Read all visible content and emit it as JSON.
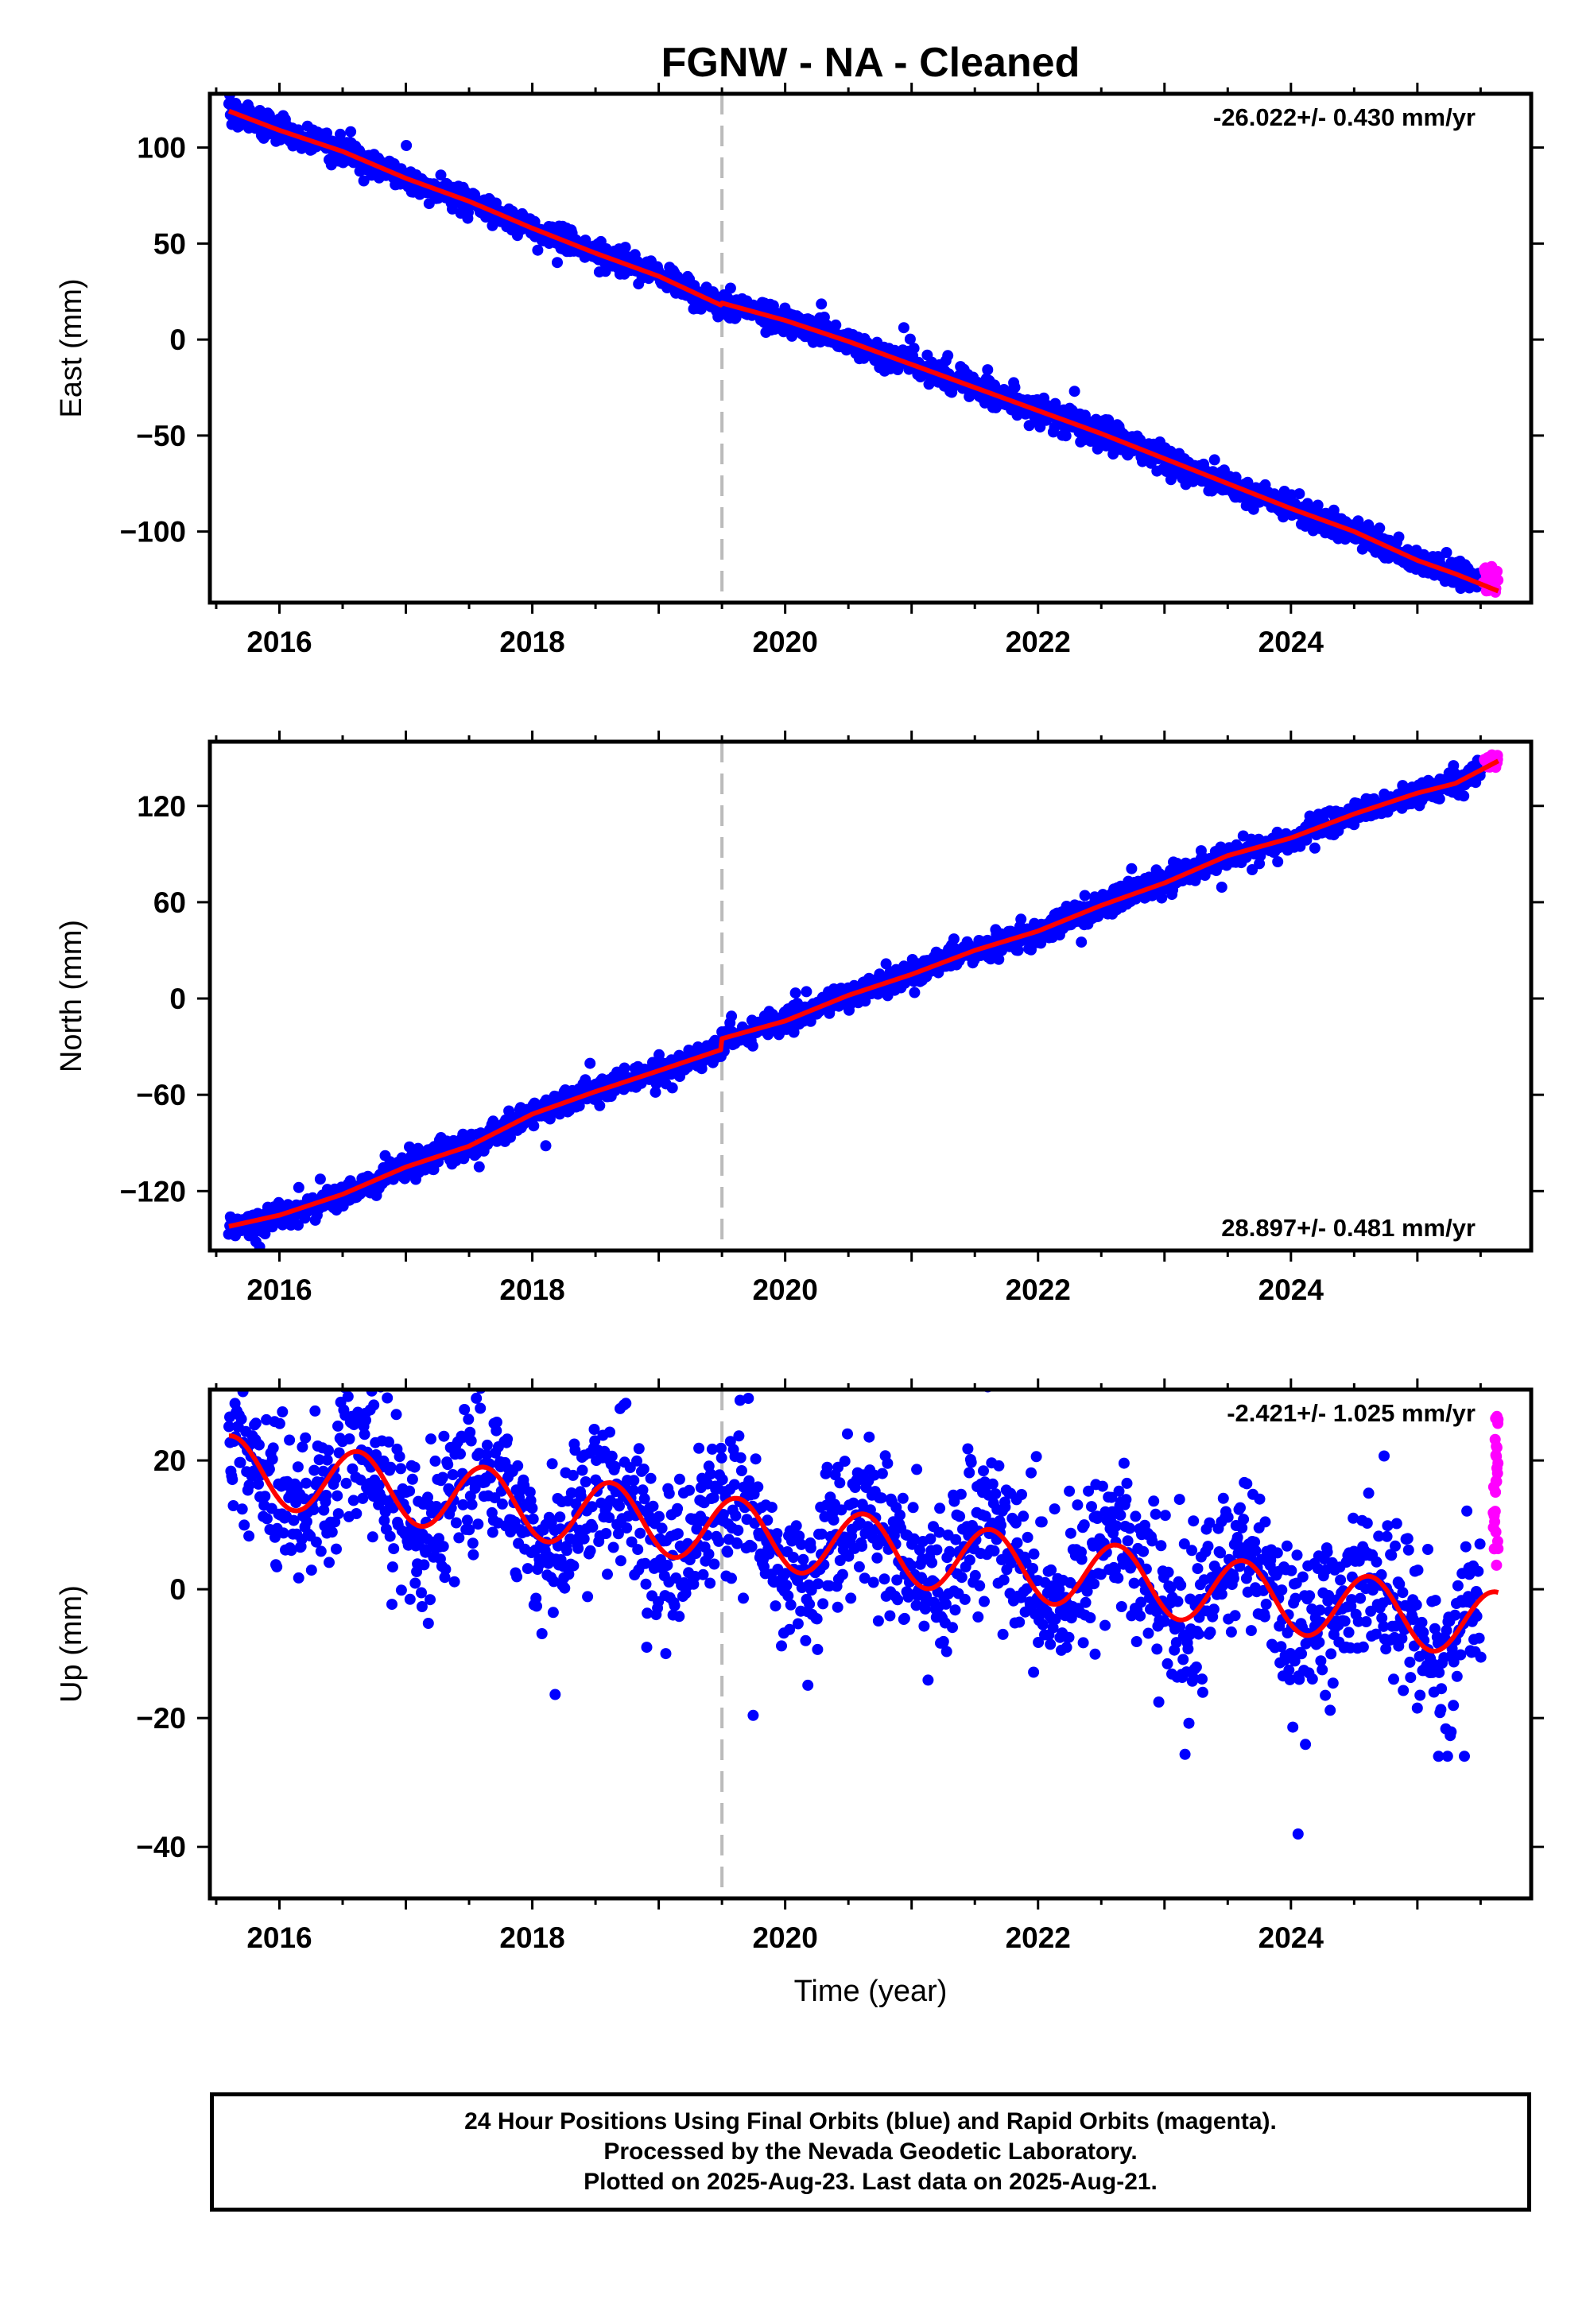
{
  "title": "FGNW  - NA - Cleaned",
  "xlabel": "Time (year)",
  "colors": {
    "final_orbits": "#0000ff",
    "rapid_orbits": "#ff00ff",
    "model": "#ff0000",
    "event_line": "#bbbbbb"
  },
  "caption": {
    "line1": "24 Hour Positions Using Final Orbits (blue) and Rapid Orbits (magenta).",
    "line2": "Processed by the Nevada Geodetic Laboratory.",
    "line3": "Plotted on 2025-Aug-23. Last data on 2025-Aug-21."
  },
  "chart_data": [
    {
      "type": "scatter",
      "ylabel": "East (mm)",
      "rate_label": "-26.022+/- 0.430 mm/yr",
      "rate_position": "top-right",
      "xlim": [
        2015.45,
        2025.9
      ],
      "ylim": [
        -137,
        128
      ],
      "xticks": [
        2016,
        2018,
        2020,
        2022,
        2024
      ],
      "yticks": [
        100,
        50,
        0,
        -50,
        -100
      ],
      "ytick_labels": [
        "100",
        "50",
        "0",
        "−50",
        "−100"
      ],
      "event_line_x": 2019.5,
      "model_points": [
        [
          2015.6,
          119
        ],
        [
          2016.0,
          109
        ],
        [
          2016.5,
          98
        ],
        [
          2017.0,
          84
        ],
        [
          2017.5,
          72
        ],
        [
          2018.0,
          58
        ],
        [
          2018.5,
          45
        ],
        [
          2019.0,
          33
        ],
        [
          2019.49,
          18
        ],
        [
          2019.5,
          19
        ],
        [
          2020.0,
          10
        ],
        [
          2020.5,
          -1
        ],
        [
          2021.0,
          -13
        ],
        [
          2021.5,
          -25
        ],
        [
          2022.0,
          -37
        ],
        [
          2022.5,
          -49
        ],
        [
          2023.0,
          -62
        ],
        [
          2023.5,
          -75
        ],
        [
          2024.0,
          -88
        ],
        [
          2024.5,
          -100
        ],
        [
          2025.0,
          -115
        ],
        [
          2025.3,
          -122
        ],
        [
          2025.64,
          -131
        ]
      ],
      "final_series": {
        "name": "Final Orbits",
        "x_range": [
          2015.6,
          2025.5
        ],
        "scatter_mm": 3.5,
        "n": 1700
      },
      "rapid_series": {
        "name": "Rapid Orbits",
        "x_range": [
          2025.52,
          2025.64
        ],
        "y_range": [
          -132,
          -118
        ]
      }
    },
    {
      "type": "scatter",
      "ylabel": "North (mm)",
      "rate_label": "28.897+/- 0.481 mm/yr",
      "rate_position": "bottom-right",
      "xlim": [
        2015.45,
        2025.9
      ],
      "ylim": [
        -157,
        160
      ],
      "xticks": [
        2016,
        2018,
        2020,
        2022,
        2024
      ],
      "yticks": [
        120,
        60,
        0,
        -60,
        -120
      ],
      "ytick_labels": [
        "120",
        "60",
        "0",
        "−60",
        "−120"
      ],
      "event_line_x": 2019.5,
      "model_points": [
        [
          2015.6,
          -142
        ],
        [
          2016.0,
          -135
        ],
        [
          2016.5,
          -122
        ],
        [
          2017.0,
          -105
        ],
        [
          2017.5,
          -92
        ],
        [
          2018.0,
          -72
        ],
        [
          2018.5,
          -58
        ],
        [
          2019.0,
          -45
        ],
        [
          2019.49,
          -32
        ],
        [
          2019.5,
          -25
        ],
        [
          2020.0,
          -14
        ],
        [
          2020.5,
          2
        ],
        [
          2021.0,
          15
        ],
        [
          2021.5,
          30
        ],
        [
          2022.0,
          42
        ],
        [
          2022.5,
          58
        ],
        [
          2023.0,
          72
        ],
        [
          2023.5,
          89
        ],
        [
          2024.0,
          100
        ],
        [
          2024.5,
          115
        ],
        [
          2025.0,
          128
        ],
        [
          2025.3,
          134
        ],
        [
          2025.64,
          148
        ]
      ],
      "final_series": {
        "name": "Final Orbits",
        "x_range": [
          2015.6,
          2025.5
        ],
        "scatter_mm": 4.0,
        "n": 1700
      },
      "rapid_series": {
        "name": "Rapid Orbits",
        "x_range": [
          2025.52,
          2025.64
        ],
        "y_range": [
          144,
          152
        ]
      }
    },
    {
      "type": "scatter",
      "ylabel": "Up (mm)",
      "rate_label": "-2.421+/- 1.025 mm/yr",
      "rate_position": "top-right",
      "xlim": [
        2015.45,
        2025.9
      ],
      "ylim": [
        -48,
        31
      ],
      "xticks": [
        2016,
        2018,
        2020,
        2022,
        2024
      ],
      "yticks": [
        20,
        0,
        -20,
        -40
      ],
      "ytick_labels": [
        "20",
        "0",
        "−20",
        "−40"
      ],
      "event_line_x": 2019.5,
      "model": {
        "offset_mm": 8.0,
        "rate_mm_per_yr": -2.421,
        "ref_year": 2020.0,
        "seasonal_amplitude_mm": 5.2,
        "peak_phase_year": 0.62,
        "x_range": [
          2015.6,
          2025.64
        ]
      },
      "final_series": {
        "name": "Final Orbits",
        "x_range": [
          2015.6,
          2025.5
        ],
        "scatter_mm": 6.0,
        "n": 1700
      },
      "rapid_series": {
        "name": "Rapid Orbits",
        "x_range": [
          2025.6,
          2025.64
        ],
        "y_range": [
          3,
          27
        ]
      }
    }
  ]
}
